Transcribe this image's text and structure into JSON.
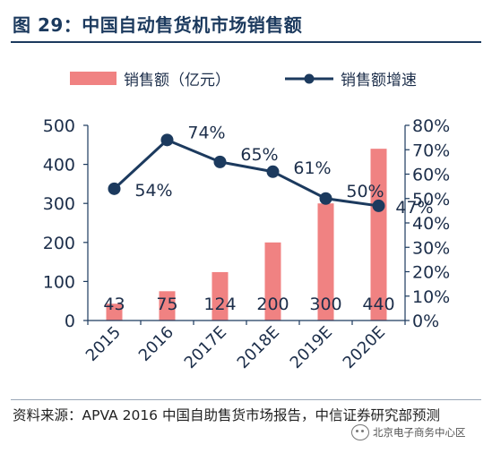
{
  "title": "图 29：中国自动售货机市场销售额",
  "chart_data": {
    "type": "bar+line",
    "categories": [
      "2015",
      "2016",
      "2017E",
      "2018E",
      "2019E",
      "2020E"
    ],
    "series": [
      {
        "name": "销售额（亿元）",
        "type": "bar",
        "axis": "left",
        "values": [
          43,
          75,
          124,
          200,
          300,
          440
        ],
        "labels": [
          "43",
          "75",
          "124",
          "200",
          "300",
          "440"
        ],
        "color": "#f08282"
      },
      {
        "name": "销售额增速",
        "type": "line",
        "axis": "right",
        "values": [
          54,
          74,
          65,
          61,
          50,
          47
        ],
        "labels": [
          "54%",
          "74%",
          "65%",
          "61%",
          "50%",
          "47%"
        ],
        "color": "#1c3a5e"
      }
    ],
    "y_left": {
      "min": 0,
      "max": 500,
      "ticks": [
        "0",
        "100",
        "200",
        "300",
        "400",
        "500"
      ]
    },
    "y_right": {
      "min": 0,
      "max": 80,
      "ticks": [
        "0%",
        "10%",
        "20%",
        "30%",
        "40%",
        "50%",
        "60%",
        "70%",
        "80%"
      ]
    },
    "legend_position": "top",
    "grid": false
  },
  "source": "资料来源：APVA 2016 中国自助售货市场报告，中信证券研究部预测",
  "watermark": "北京电子商务中心区"
}
